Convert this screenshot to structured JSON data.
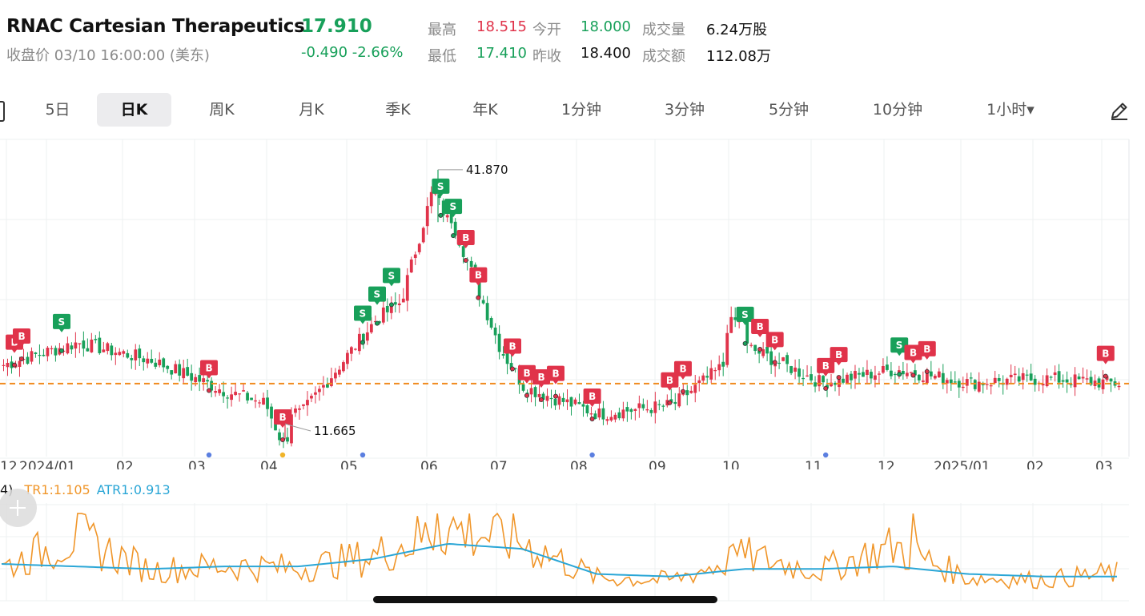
{
  "header": {
    "ticker": "RNAC  Cartesian Therapeutics",
    "price": "17.910",
    "close_time": "收盘价 03/10 16:00:00 (美东)",
    "change": "-0.490 -2.66%",
    "stats": [
      {
        "label": "最高",
        "value": "18.515",
        "color": "red"
      },
      {
        "label": "今开",
        "value": "18.000",
        "color": "green"
      },
      {
        "label": "成交量",
        "value": "6.24万股",
        "color": "dark"
      },
      {
        "label": "最低",
        "value": "17.410",
        "color": "green"
      },
      {
        "label": "昨收",
        "value": "18.400",
        "color": "dark"
      },
      {
        "label": "成交额",
        "value": "112.08万",
        "color": "dark"
      }
    ]
  },
  "tabs": [
    {
      "label": "5日",
      "active": false
    },
    {
      "label": "日K",
      "active": true
    },
    {
      "label": "周K",
      "active": false
    },
    {
      "label": "月K",
      "active": false
    },
    {
      "label": "季K",
      "active": false
    },
    {
      "label": "年K",
      "active": false
    },
    {
      "label": "1分钟",
      "active": false
    },
    {
      "label": "3分钟",
      "active": false
    },
    {
      "label": "5分钟",
      "active": false
    },
    {
      "label": "10分钟",
      "active": false
    },
    {
      "label": "1小时▾",
      "active": false
    }
  ],
  "icons": {
    "edit": "pencil-icon",
    "add": "plus-icon"
  },
  "colors": {
    "up": "#e0334a",
    "down": "#18a05a",
    "ref_line": "#f08a1e",
    "tr": "#f0962a",
    "atr": "#2aa6d6"
  },
  "chart_data": [
    {
      "type": "candlestick",
      "x_tick_labels": [
        "12",
        "2024/01",
        "02",
        "03",
        "04",
        "05",
        "06",
        "07",
        "08",
        "09",
        "10",
        "11",
        "12",
        "2025/01",
        "02",
        "03"
      ],
      "annotations": [
        {
          "label": "41.870",
          "kind": "period_high",
          "date_label": "06"
        },
        {
          "label": "11.665",
          "kind": "period_low",
          "date_label": "04"
        }
      ],
      "reference_line": {
        "value": 17.91,
        "style": "dashed"
      },
      "trade_markers": [
        {
          "type": "B",
          "month": "2023/12"
        },
        {
          "type": "B",
          "month": "2023/12"
        },
        {
          "type": "S",
          "month": "2024/01"
        },
        {
          "type": "B",
          "month": "2024/03"
        },
        {
          "type": "B",
          "month": "2024/04"
        },
        {
          "type": "S",
          "month": "2024/05"
        },
        {
          "type": "S",
          "month": "2024/05"
        },
        {
          "type": "S",
          "month": "2024/05"
        },
        {
          "type": "S",
          "month": "2024/06"
        },
        {
          "type": "S",
          "month": "2024/06"
        },
        {
          "type": "B",
          "month": "2024/06"
        },
        {
          "type": "B",
          "month": "2024/06"
        },
        {
          "type": "B",
          "month": "2024/07"
        },
        {
          "type": "B",
          "month": "2024/07"
        },
        {
          "type": "B",
          "month": "2024/07"
        },
        {
          "type": "B",
          "month": "2024/07"
        },
        {
          "type": "B",
          "month": "2024/08"
        },
        {
          "type": "B",
          "month": "2024/09"
        },
        {
          "type": "B",
          "month": "2024/09"
        },
        {
          "type": "S",
          "month": "2024/10"
        },
        {
          "type": "B",
          "month": "2024/10"
        },
        {
          "type": "B",
          "month": "2024/10"
        },
        {
          "type": "B",
          "month": "2024/11"
        },
        {
          "type": "B",
          "month": "2024/11"
        },
        {
          "type": "S",
          "month": "2024/12"
        },
        {
          "type": "B",
          "month": "2024/12"
        },
        {
          "type": "B",
          "month": "2024/12"
        },
        {
          "type": "B",
          "month": "2025/03"
        }
      ],
      "event_dots": [
        {
          "month": "2024/03",
          "color": "#5b7fe0"
        },
        {
          "month": "2024/04",
          "color": "#f0b429"
        },
        {
          "month": "2024/05",
          "color": "#5b7fe0"
        },
        {
          "month": "2024/08",
          "color": "#5b7fe0"
        },
        {
          "month": "2024/11",
          "color": "#5b7fe0"
        }
      ],
      "monthly_close_approx": [
        {
          "month": "2023/12",
          "close": 20.0
        },
        {
          "month": "2024/01",
          "close": 22.5
        },
        {
          "month": "2024/02",
          "close": 20.5
        },
        {
          "month": "2024/03",
          "close": 17.0
        },
        {
          "month": "2024/04",
          "close": 14.5
        },
        {
          "month": "2024/05",
          "close": 25.0
        },
        {
          "month": "2024/06",
          "close": 31.0
        },
        {
          "month": "2024/07",
          "close": 17.5
        },
        {
          "month": "2024/08",
          "close": 14.5
        },
        {
          "month": "2024/09",
          "close": 15.5
        },
        {
          "month": "2024/10",
          "close": 22.0
        },
        {
          "month": "2024/11",
          "close": 18.0
        },
        {
          "month": "2024/12",
          "close": 19.5
        },
        {
          "month": "2025/01",
          "close": 18.0
        },
        {
          "month": "2025/02",
          "close": 18.5
        },
        {
          "month": "2025/03",
          "close": 17.91
        }
      ]
    },
    {
      "type": "line",
      "legend_prefix": "4)",
      "series": [
        {
          "name": "TR1",
          "label": "TR1:1.105"
        },
        {
          "name": "ATR1",
          "label": "ATR1:0.913"
        }
      ],
      "tr_monthly_approx": [
        1.3,
        2.6,
        1.2,
        1.4,
        1.3,
        1.8,
        3.0,
        2.4,
        0.9,
        0.8,
        1.8,
        1.2,
        2.2,
        0.9,
        0.8,
        1.1
      ],
      "atr_monthly_approx": [
        1.4,
        1.3,
        1.2,
        1.3,
        1.3,
        1.6,
        2.2,
        2.0,
        1.0,
        0.9,
        1.2,
        1.2,
        1.3,
        1.0,
        0.9,
        0.9
      ]
    }
  ]
}
